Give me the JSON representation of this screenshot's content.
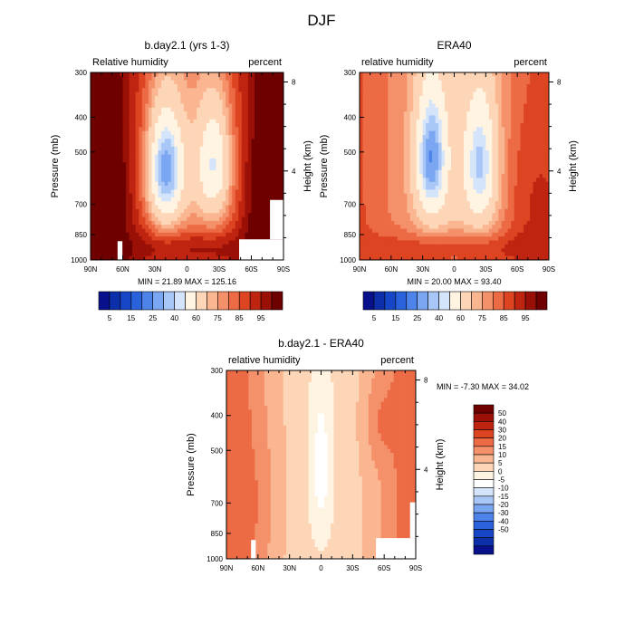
{
  "figure": {
    "title": "DJF"
  },
  "palettes": {
    "abs": [
      "#08108c",
      "#0c2ea8",
      "#1646c6",
      "#2a62dc",
      "#4e84ea",
      "#7aa6f2",
      "#a8c6f6",
      "#d4e4fa",
      "#fff3e2",
      "#fdd6b8",
      "#f9b690",
      "#f4916a",
      "#ec6a44",
      "#dc4422",
      "#bf2410",
      "#9a1006",
      "#6e0000"
    ],
    "diff": [
      "#08108c",
      "#0c2ea8",
      "#1646c6",
      "#2a62dc",
      "#4e84ea",
      "#7aa6f2",
      "#a8c6f6",
      "#d4e4fa",
      "#ffffff",
      "#fff3e2",
      "#fdd6b8",
      "#f9b690",
      "#f4916a",
      "#ec6a44",
      "#dc4422",
      "#bf2410",
      "#9a1006",
      "#6e0000"
    ]
  },
  "chart_data": [
    {
      "type": "heatmap",
      "title": "b.day2.1 (yrs 1-3)",
      "left_label": "Relative humidity",
      "right_label": "percent",
      "ylabel": "Pressure (mb)",
      "ylabel_right": "Height (km)",
      "x_ticks": [
        "90N",
        "60N",
        "30N",
        "0",
        "30S",
        "60S",
        "90S"
      ],
      "y_ticks": [
        "300",
        "400",
        "500",
        "700",
        "850",
        "1000"
      ],
      "y_right_ticks": [
        "8",
        "4"
      ],
      "minmax": "MIN =  21.89  MAX = 125.16",
      "colorbar_labels": [
        "5",
        "15",
        "25",
        "40",
        "60",
        "75",
        "85",
        "95"
      ]
    },
    {
      "type": "heatmap",
      "title": "ERA40",
      "left_label": "relative humidity",
      "right_label": "percent",
      "ylabel": "Pressure (mb)",
      "ylabel_right": "Height (km)",
      "x_ticks": [
        "90N",
        "60N",
        "30N",
        "0",
        "30S",
        "60S",
        "90S"
      ],
      "y_ticks": [
        "300",
        "400",
        "500",
        "700",
        "850",
        "1000"
      ],
      "y_right_ticks": [
        "8",
        "4"
      ],
      "minmax": "MIN =  20.00  MAX =  93.40",
      "colorbar_labels": [
        "5",
        "15",
        "25",
        "40",
        "60",
        "75",
        "85",
        "95"
      ]
    },
    {
      "type": "heatmap",
      "title": "b.day2.1 - ERA40",
      "left_label": "relative humidity",
      "right_label": "percent",
      "ylabel": "Pressure (mb)",
      "ylabel_right": "Height (km)",
      "x_ticks": [
        "90N",
        "60N",
        "30N",
        "0",
        "30S",
        "60S",
        "90S"
      ],
      "y_ticks": [
        "300",
        "400",
        "500",
        "700",
        "850",
        "1000"
      ],
      "y_right_ticks": [
        "8",
        "4"
      ],
      "minmax": "MIN =  -7.30  MAX =  34.02",
      "colorbar_labels": [
        "50",
        "40",
        "30",
        "20",
        "15",
        "10",
        "5",
        "0",
        "-5",
        "-10",
        "-15",
        "-20",
        "-30",
        "-40",
        "-50"
      ]
    }
  ]
}
